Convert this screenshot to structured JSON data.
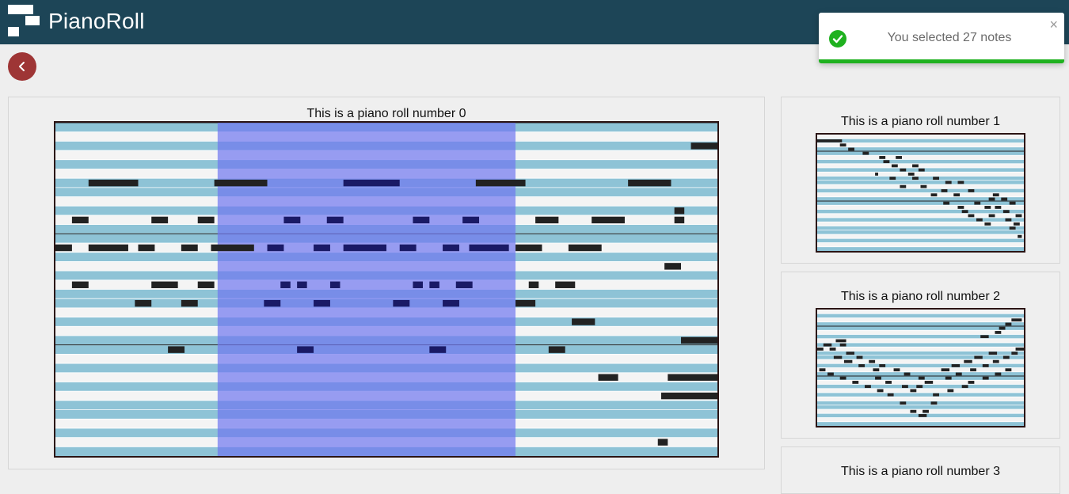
{
  "app": {
    "title": "PianoRoll"
  },
  "icons": {
    "logo": "pianoroll-logo-icon",
    "back": "chevron-left-icon",
    "success": "check-circle-icon",
    "close": "close-icon"
  },
  "colors": {
    "topbar": "#1d4557",
    "back_button": "#9e3535",
    "black_key_lane": "#8ec3d6",
    "white_key_lane": "#f4f4f4",
    "note": "#222222",
    "selected_note": "#1a1a66",
    "selection": "#6f76f0",
    "success": "#1fb11f"
  },
  "toast": {
    "message": "You selected 27 notes",
    "close_label": "×",
    "progress": 1.0
  },
  "main_roll": {
    "title": "This is a piano roll number 0",
    "lanes": 36,
    "duration": 100,
    "selection": {
      "start": 24.5,
      "end": 69.5
    },
    "notes": [
      [
        6,
        5,
        7.5
      ],
      [
        6,
        24,
        8
      ],
      [
        6,
        43.5,
        8.5
      ],
      [
        6,
        63.5,
        7.5
      ],
      [
        6,
        86.5,
        6.5
      ],
      [
        2,
        96,
        4
      ],
      [
        10,
        2.5,
        2.5
      ],
      [
        10,
        14.5,
        2.5
      ],
      [
        10,
        21.5,
        2.5
      ],
      [
        10,
        34.5,
        2.5
      ],
      [
        10,
        41,
        2.5
      ],
      [
        10,
        54,
        2.5
      ],
      [
        10,
        61.5,
        2.5
      ],
      [
        10,
        72.5,
        3.5
      ],
      [
        10,
        81,
        5
      ],
      [
        10,
        93.5,
        1.5
      ],
      [
        9,
        93.5,
        1.5
      ],
      [
        13,
        0,
        2.5
      ],
      [
        13,
        5,
        6
      ],
      [
        13,
        12.5,
        2.5
      ],
      [
        13,
        19,
        2.5
      ],
      [
        13,
        23.5,
        6.5
      ],
      [
        13,
        32,
        2.5
      ],
      [
        13,
        39,
        2.5
      ],
      [
        13,
        43.5,
        6.5
      ],
      [
        13,
        52,
        2.5
      ],
      [
        13,
        58.5,
        2.5
      ],
      [
        13,
        62.5,
        6
      ],
      [
        13,
        69.5,
        4
      ],
      [
        13,
        77.5,
        5
      ],
      [
        15,
        92,
        2.5
      ],
      [
        17,
        2.5,
        2.5
      ],
      [
        17,
        14.5,
        4
      ],
      [
        17,
        21.5,
        2.5
      ],
      [
        17,
        34,
        1.5
      ],
      [
        17,
        36.5,
        1.5
      ],
      [
        17,
        41.5,
        1.5
      ],
      [
        17,
        54,
        1.5
      ],
      [
        17,
        56.5,
        1.5
      ],
      [
        17,
        60.5,
        2.5
      ],
      [
        17,
        71.5,
        1.5
      ],
      [
        17,
        75.5,
        3
      ],
      [
        19,
        12,
        2.5
      ],
      [
        19,
        19,
        2.5
      ],
      [
        19,
        31.5,
        2.5
      ],
      [
        19,
        39,
        2.5
      ],
      [
        19,
        51,
        2.5
      ],
      [
        19,
        58.5,
        2.5
      ],
      [
        19,
        69.5,
        3
      ],
      [
        21,
        78,
        3.5
      ],
      [
        23,
        94.5,
        5.5
      ],
      [
        24,
        17,
        2.5
      ],
      [
        24,
        36.5,
        2.5
      ],
      [
        24,
        56.5,
        2.5
      ],
      [
        24,
        74.5,
        2.5
      ],
      [
        27,
        82,
        3
      ],
      [
        27,
        92.5,
        7.5
      ],
      [
        29,
        91.5,
        8.5
      ],
      [
        34,
        91,
        1.5
      ]
    ]
  },
  "side_rolls": [
    {
      "title": "This is a piano roll number 1",
      "lanes": 28,
      "duration": 100,
      "notes": [
        [
          1,
          0,
          12
        ],
        [
          2,
          11,
          3
        ],
        [
          3,
          15,
          3
        ],
        [
          4,
          22,
          3
        ],
        [
          5,
          30,
          3
        ],
        [
          5,
          38,
          3
        ],
        [
          6,
          32,
          3
        ],
        [
          7,
          36,
          3
        ],
        [
          7,
          46,
          3
        ],
        [
          8,
          40,
          3
        ],
        [
          8,
          49,
          3
        ],
        [
          9,
          28,
          1.5
        ],
        [
          9,
          44,
          3
        ],
        [
          10,
          35,
          3
        ],
        [
          10,
          46,
          3
        ],
        [
          10,
          56,
          3
        ],
        [
          11,
          62,
          3
        ],
        [
          11,
          68,
          3
        ],
        [
          12,
          40,
          3
        ],
        [
          12,
          50,
          3
        ],
        [
          13,
          60,
          3
        ],
        [
          13,
          73,
          3
        ],
        [
          14,
          55,
          3
        ],
        [
          14,
          66,
          3
        ],
        [
          14,
          85,
          3
        ],
        [
          15,
          83,
          3
        ],
        [
          15,
          89,
          3
        ],
        [
          16,
          61,
          3
        ],
        [
          16,
          76,
          3
        ],
        [
          16,
          93,
          3
        ],
        [
          17,
          68,
          3
        ],
        [
          17,
          81,
          3
        ],
        [
          17,
          86,
          3
        ],
        [
          18,
          70,
          3
        ],
        [
          18,
          90,
          3
        ],
        [
          19,
          73,
          3
        ],
        [
          19,
          83,
          3
        ],
        [
          19,
          96,
          3
        ],
        [
          20,
          77,
          3
        ],
        [
          20,
          91,
          3
        ],
        [
          21,
          81,
          3
        ],
        [
          21,
          95,
          3
        ],
        [
          22,
          93,
          3
        ],
        [
          24,
          97,
          2
        ]
      ]
    },
    {
      "title": "This is a piano roll number 2",
      "lanes": 28,
      "duration": 100,
      "notes": [
        [
          2,
          94,
          5
        ],
        [
          3,
          91,
          3
        ],
        [
          4,
          88,
          3
        ],
        [
          5,
          86,
          3
        ],
        [
          6,
          79,
          4
        ],
        [
          7,
          9,
          5
        ],
        [
          8,
          3,
          4
        ],
        [
          8,
          11,
          3
        ],
        [
          9,
          0,
          3
        ],
        [
          9,
          6,
          3
        ],
        [
          9,
          96,
          4
        ],
        [
          10,
          14,
          4
        ],
        [
          10,
          83,
          4
        ],
        [
          10,
          94,
          3
        ],
        [
          11,
          8,
          4
        ],
        [
          11,
          19,
          3
        ],
        [
          11,
          76,
          4
        ],
        [
          11,
          90,
          3
        ],
        [
          12,
          13,
          4
        ],
        [
          12,
          25,
          3
        ],
        [
          12,
          71,
          4
        ],
        [
          12,
          85,
          3
        ],
        [
          13,
          20,
          3
        ],
        [
          13,
          30,
          3
        ],
        [
          13,
          65,
          4
        ],
        [
          13,
          80,
          3
        ],
        [
          14,
          1,
          3
        ],
        [
          14,
          27,
          3
        ],
        [
          14,
          37,
          3
        ],
        [
          14,
          60,
          4
        ],
        [
          14,
          74,
          3
        ],
        [
          14,
          91,
          3
        ],
        [
          15,
          5,
          3
        ],
        [
          15,
          42,
          3
        ],
        [
          15,
          67,
          3
        ],
        [
          15,
          86,
          3
        ],
        [
          16,
          11,
          3
        ],
        [
          16,
          28,
          3
        ],
        [
          16,
          49,
          3
        ],
        [
          16,
          62,
          3
        ],
        [
          16,
          80,
          3
        ],
        [
          17,
          17,
          3
        ],
        [
          17,
          33,
          3
        ],
        [
          17,
          52,
          4
        ],
        [
          17,
          73,
          3
        ],
        [
          18,
          23,
          3
        ],
        [
          18,
          41,
          3
        ],
        [
          18,
          48,
          3
        ],
        [
          18,
          70,
          3
        ],
        [
          19,
          29,
          3
        ],
        [
          19,
          45,
          3
        ],
        [
          19,
          63,
          3
        ],
        [
          20,
          34,
          3
        ],
        [
          20,
          56,
          3
        ],
        [
          22,
          40,
          3
        ],
        [
          22,
          55,
          3
        ],
        [
          24,
          45,
          3
        ],
        [
          24,
          51,
          3
        ],
        [
          25,
          49,
          4
        ]
      ]
    },
    {
      "title": "This is a piano roll number 3"
    }
  ]
}
